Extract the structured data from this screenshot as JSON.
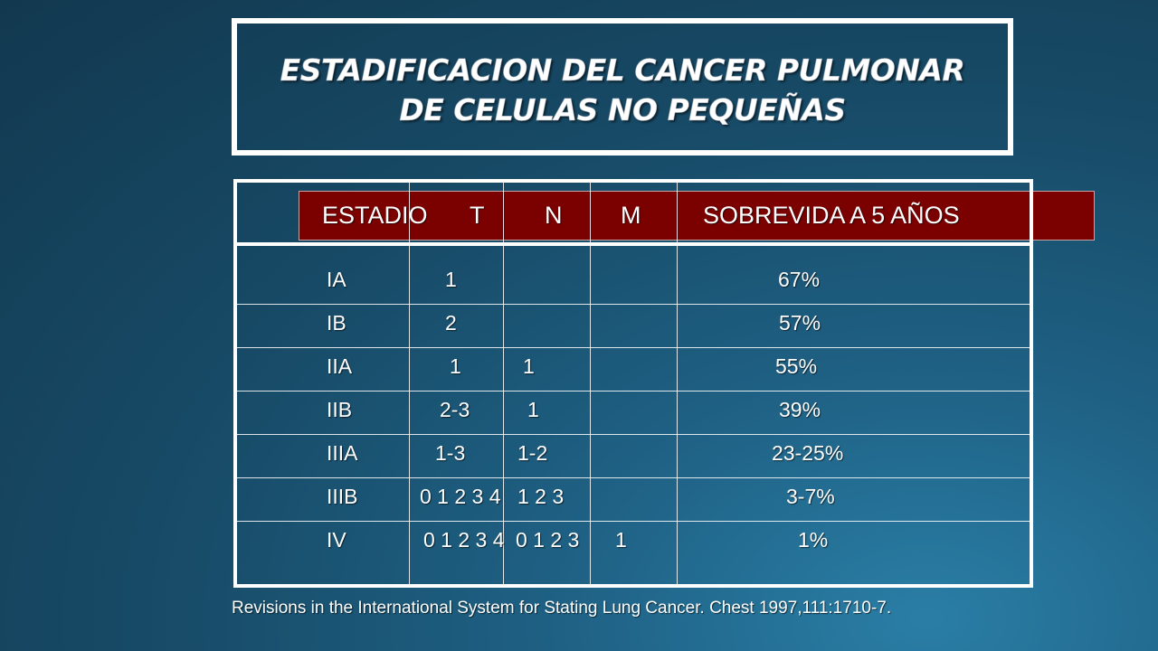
{
  "title": {
    "line1": "ESTADIFICACION DEL CANCER PULMONAR",
    "line2": "DE CELULAS NO PEQUEÑAS"
  },
  "table": {
    "headers": [
      "ESTADIO",
      "T",
      "N",
      "M",
      "SOBREVIDA A 5 AÑOS"
    ],
    "rows": [
      {
        "estadio": "IA",
        "t": "1",
        "n": "",
        "m": "",
        "sobrevida": "67%"
      },
      {
        "estadio": "IB",
        "t": "2",
        "n": "",
        "m": "",
        "sobrevida": "57%"
      },
      {
        "estadio": "IIA",
        "t": "1",
        "n": "1",
        "m": "",
        "sobrevida": "55%"
      },
      {
        "estadio": "IIB",
        "t": "2-3",
        "n": "1",
        "m": "",
        "sobrevida": "39%"
      },
      {
        "estadio": "IIIA",
        "t": "1-3",
        "n": "1-2",
        "m": "",
        "sobrevida": "23-25%"
      },
      {
        "estadio": "IIIB",
        "t": "0 1 2 3 4",
        "n": "1 2 3",
        "m": "",
        "sobrevida": "3-7%"
      },
      {
        "estadio": "IV",
        "t": "0 1 2 3 4",
        "n": "0 1 2 3",
        "m": "1",
        "sobrevida": "1%"
      }
    ]
  },
  "footnote": "Revisions in the International System for Stating Lung Cancer. Chest 1997,111:1710-7.",
  "colors": {
    "header_band": "#7b0000",
    "text": "#ffffff",
    "background": "#174a66"
  }
}
